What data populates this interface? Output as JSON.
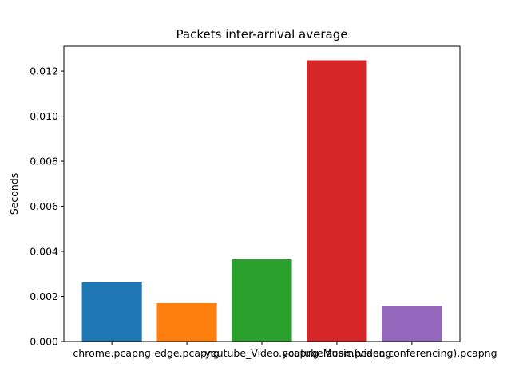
{
  "chart_data": {
    "type": "bar",
    "title": "Packets inter-arrival average",
    "xlabel": "",
    "ylabel": "Seconds",
    "categories": [
      "chrome.pcapng",
      "edge.pcapng",
      "youtube_Video.pcapng",
      "youtubeMusic.pcapng",
      "zoom(video conferencing).pcapng"
    ],
    "values": [
      0.00263,
      0.0017,
      0.00365,
      0.01248,
      0.00157
    ],
    "colors": [
      "#1f77b4",
      "#ff7f0e",
      "#2ca02c",
      "#d62728",
      "#9467bd"
    ],
    "ylim": [
      0,
      0.0131
    ],
    "yticks": [
      0,
      0.002,
      0.004,
      0.006,
      0.008,
      0.01,
      0.012
    ],
    "ytick_labels": [
      "0.000",
      "0.002",
      "0.004",
      "0.006",
      "0.008",
      "0.010",
      "0.012"
    ],
    "grid": false,
    "legend": "none"
  }
}
